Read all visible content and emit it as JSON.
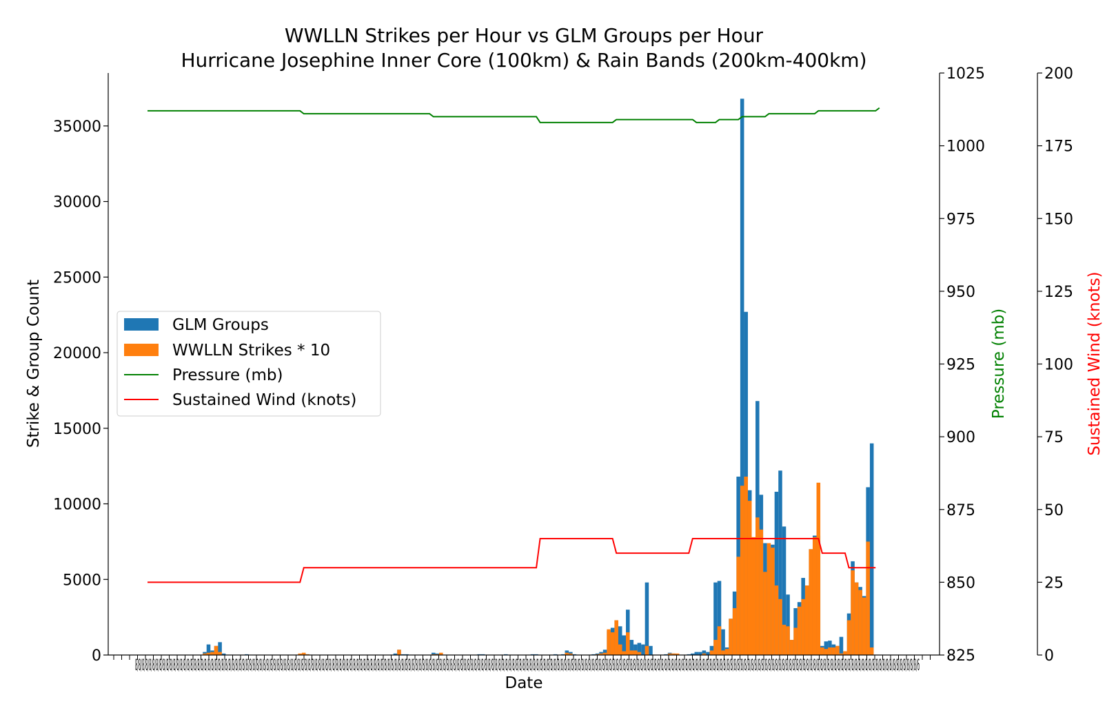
{
  "chart_data": {
    "type": "bar",
    "title": "WWLLN Strikes per Hour vs GLM Groups per Hour",
    "subtitle": "Hurricane Josephine Inner Core (100km) & Rain Bands (200km-400km)",
    "xlabel": "Date",
    "ylabel": "Strike & Group Count",
    "y2label": "Pressure (mb)",
    "y3label": "Sustained Wind (knots)",
    "ylim": [
      0,
      38500
    ],
    "y2lim": [
      825,
      1025
    ],
    "y3lim": [
      0,
      200
    ],
    "yticks": [
      "0",
      "5000",
      "10000",
      "15000",
      "20000",
      "25000",
      "30000",
      "35000"
    ],
    "y2ticks": [
      "825",
      "850",
      "875",
      "900",
      "925",
      "950",
      "975",
      "1000",
      "1025"
    ],
    "y3ticks": [
      "0",
      "25",
      "50",
      "75",
      "100",
      "125",
      "150",
      "175",
      "200"
    ],
    "xtick_label_text": "8/8/8/8/8/8/8/8/8/8/8/8/8/8/8/8/8/8/8/8/8/8/8/8/8/8/8/8/8/8/8/8/8/8/8/8/8/8/8/8/8/8/8/8/8/8/8/8/8/8/8/8/8/8/8/8/8/8/8/8/8/8/8/8/8/8/8/8/8/8/8/8/8/8/8/8/8/8/8/8/8/8/8/8/8/8/8/8/8/8/8/8/8/8/8/8/8/8/8/8/8/8/8/8/8/8/8/8/8/8/8/8/8/8/8/8/8/8/8/8/8/8/8/8/8/8/8/8/8/8/8/8/8/8/8/8/8/8/8/8/8/8/8/8/8/8/8/8/8/8/8/8/8/8/8/8/8/8/8/8/8/8/8/8/8/8/8/8/8/8/8/8/8/8/8/8/8/8/8/8/8/8/8/8/8/8/8/8/8/8/8/8/8/8/8/8/8/8/8/8/8/8/8/8/8/8/8/8/8/8/8/8/8/8/8/8/8/8/8/8/8/8/8/8/8/8/6",
    "legend": {
      "position": "center-left",
      "frame": true
    },
    "grid": false,
    "series": [
      {
        "name": "GLM Groups",
        "type": "bar",
        "color": "#1f77b4",
        "values": [
          0,
          0,
          0,
          0,
          0,
          0,
          0,
          0,
          0,
          0,
          0,
          0,
          0,
          0,
          0,
          200,
          700,
          300,
          600,
          850,
          100,
          0,
          0,
          0,
          0,
          0,
          50,
          0,
          0,
          0,
          0,
          0,
          0,
          0,
          0,
          0,
          0,
          0,
          0,
          0,
          50,
          100,
          50,
          0,
          0,
          0,
          0,
          0,
          0,
          0,
          0,
          0,
          0,
          0,
          0,
          0,
          0,
          0,
          0,
          0,
          0,
          0,
          0,
          0,
          0,
          100,
          350,
          50,
          50,
          0,
          0,
          0,
          0,
          0,
          0,
          150,
          100,
          100,
          0,
          0,
          0,
          0,
          0,
          0,
          0,
          0,
          0,
          50,
          50,
          0,
          0,
          0,
          0,
          0,
          50,
          0,
          0,
          0,
          0,
          0,
          0,
          50,
          50,
          0,
          0,
          0,
          0,
          50,
          0,
          50,
          300,
          200,
          50,
          0,
          0,
          0,
          0,
          50,
          100,
          200,
          350,
          1600,
          1800,
          2300,
          1900,
          1300,
          3000,
          1000,
          700,
          800,
          700,
          4800,
          600,
          0,
          0,
          0,
          50,
          150,
          100,
          50,
          0,
          0,
          50,
          100,
          200,
          200,
          300,
          200,
          600,
          4800,
          4900,
          1700,
          500,
          2400,
          4200,
          11800,
          36800,
          22700,
          10900,
          6100,
          16800,
          10600,
          7400,
          5600,
          7300,
          10800,
          12200,
          8500,
          4000,
          1000,
          3100,
          3500,
          5100,
          4600,
          7000,
          7900,
          7900,
          600,
          900,
          950,
          700,
          600,
          1200,
          200,
          2750,
          6200,
          4800,
          4500,
          3900,
          11100,
          14000
        ]
      },
      {
        "name": "WWLLN Strikes * 10",
        "type": "bar",
        "color": "#ff7f0e",
        "values": [
          0,
          0,
          0,
          0,
          0,
          0,
          0,
          0,
          0,
          0,
          0,
          0,
          0,
          0,
          0,
          100,
          150,
          200,
          600,
          200,
          0,
          0,
          0,
          0,
          0,
          0,
          0,
          0,
          0,
          0,
          0,
          0,
          0,
          0,
          0,
          0,
          0,
          0,
          0,
          0,
          100,
          150,
          50,
          0,
          0,
          0,
          0,
          0,
          0,
          0,
          0,
          0,
          0,
          0,
          0,
          0,
          0,
          0,
          0,
          0,
          0,
          0,
          0,
          0,
          0,
          0,
          350,
          0,
          0,
          0,
          0,
          0,
          0,
          0,
          0,
          50,
          50,
          150,
          0,
          0,
          0,
          0,
          0,
          0,
          0,
          0,
          0,
          0,
          0,
          0,
          0,
          0,
          0,
          0,
          0,
          0,
          0,
          0,
          0,
          0,
          0,
          0,
          0,
          0,
          0,
          0,
          0,
          0,
          0,
          0,
          150,
          100,
          0,
          0,
          0,
          0,
          0,
          0,
          50,
          100,
          150,
          1700,
          1500,
          2300,
          700,
          250,
          1500,
          300,
          300,
          200,
          0,
          600,
          0,
          0,
          0,
          0,
          0,
          100,
          100,
          100,
          0,
          0,
          0,
          0,
          0,
          0,
          100,
          0,
          300,
          1000,
          1900,
          300,
          400,
          2400,
          3100,
          6500,
          11200,
          11800,
          10200,
          7800,
          9100,
          8300,
          5500,
          7400,
          7100,
          4600,
          3700,
          2000,
          1900,
          1000,
          1800,
          3200,
          3700,
          4600,
          7000,
          7800,
          11400,
          500,
          400,
          500,
          500,
          600,
          100,
          250,
          2300,
          5600,
          4800,
          4300,
          3800,
          7500,
          500
        ]
      },
      {
        "name": "Pressure (mb)",
        "type": "line",
        "axis": "pressure",
        "color": "#008000",
        "points": [
          [
            0,
            1012
          ],
          [
            40,
            1012
          ],
          [
            41,
            1011
          ],
          [
            74,
            1011
          ],
          [
            75,
            1010
          ],
          [
            102,
            1010
          ],
          [
            103,
            1008
          ],
          [
            122,
            1008
          ],
          [
            123,
            1009
          ],
          [
            143,
            1009
          ],
          [
            144,
            1008
          ],
          [
            149,
            1008
          ],
          [
            150,
            1009
          ],
          [
            155,
            1009
          ],
          [
            156,
            1010
          ],
          [
            162,
            1010
          ],
          [
            163,
            1011
          ],
          [
            175,
            1011
          ],
          [
            176,
            1012
          ],
          [
            191,
            1012
          ],
          [
            192,
            1013
          ]
        ]
      },
      {
        "name": "Sustained Wind (knots)",
        "type": "line",
        "axis": "wind",
        "color": "#ff0000",
        "points": [
          [
            0,
            25
          ],
          [
            40,
            25
          ],
          [
            41,
            30
          ],
          [
            102,
            30
          ],
          [
            103,
            40
          ],
          [
            122,
            40
          ],
          [
            123,
            35
          ],
          [
            142,
            35
          ],
          [
            143,
            40
          ],
          [
            176,
            40
          ],
          [
            177,
            35
          ],
          [
            183,
            35
          ],
          [
            184,
            30
          ],
          [
            191,
            30
          ]
        ]
      }
    ]
  }
}
